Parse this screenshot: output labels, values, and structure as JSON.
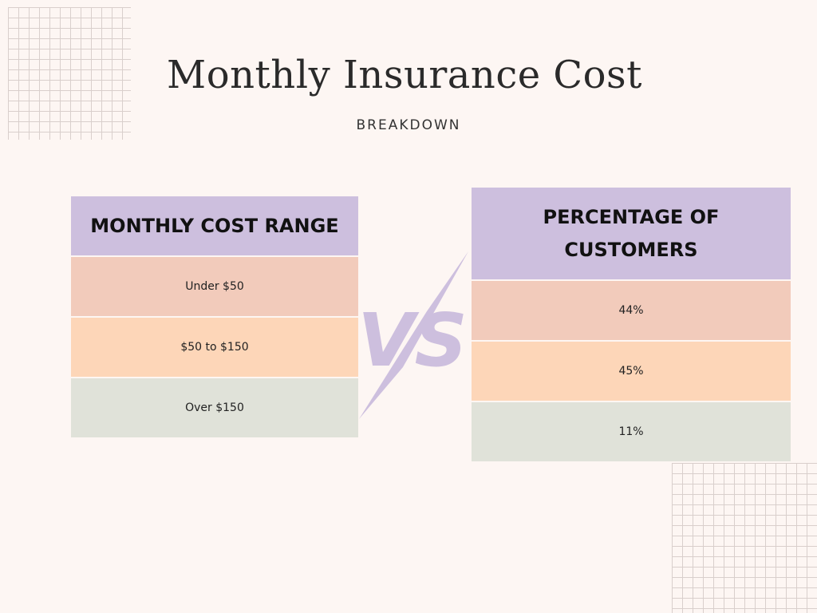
{
  "title": "Monthly Insurance Cost",
  "subtitle": "BREAKDOWN",
  "left": {
    "header": "MONTHLY COST RANGE",
    "rows": [
      "Under $50",
      "$50 to $150",
      "Over $150"
    ]
  },
  "right": {
    "header": "PERCENTAGE OF CUSTOMERS",
    "rows": [
      "44%",
      "45%",
      "11%"
    ]
  },
  "vs_label": "VS",
  "colors": {
    "header": "#cdbfde",
    "row1": "#f2cbbb",
    "row2": "#fdd6b8",
    "row3": "#e0e2d9",
    "background": "#fdf6f3",
    "vs": "#cdbfde"
  }
}
